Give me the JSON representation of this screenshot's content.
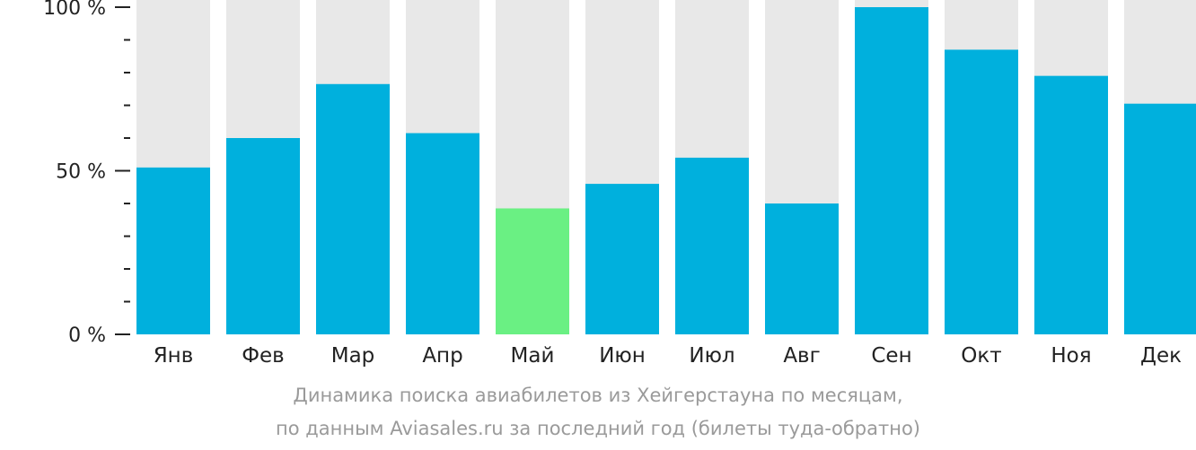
{
  "chart_data": {
    "type": "bar",
    "categories": [
      "Янв",
      "Фев",
      "Мар",
      "Апр",
      "Май",
      "Июн",
      "Июл",
      "Авг",
      "Сен",
      "Окт",
      "Ноя",
      "Дек"
    ],
    "values": [
      51,
      60,
      76.5,
      61.5,
      38.5,
      46,
      54,
      40,
      100,
      87,
      79,
      70.5
    ],
    "highlight_index": 4,
    "ylim": [
      0,
      100
    ],
    "y_ticks": [
      "0 %",
      "50 %",
      "100 %"
    ],
    "xlabel": "",
    "ylabel": "",
    "colors": {
      "bar": "#00b0dd",
      "highlight": "#6af083",
      "background_bar": "#e8e8e8",
      "axis": "#222222",
      "text": "#222222"
    }
  },
  "caption": {
    "line1": "Динамика поиска авиабилетов из Хейгерстауна по месяцам,",
    "line2": "по данным Aviasales.ru за последний год (билеты туда-обратно)"
  }
}
